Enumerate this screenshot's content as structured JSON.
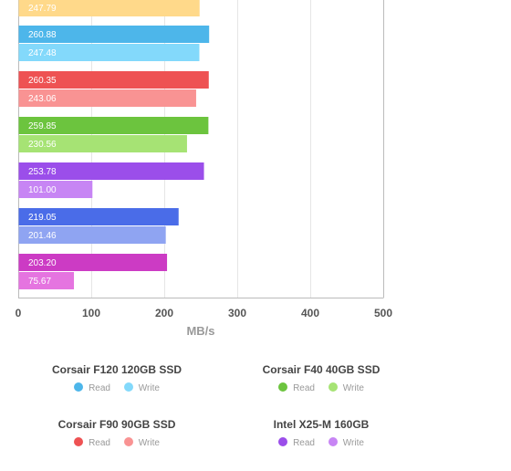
{
  "chart_data": {
    "type": "bar",
    "orientation": "horizontal",
    "xlabel": "MB/s",
    "xlim": [
      0,
      500
    ],
    "xticks": [
      0,
      100,
      200,
      300,
      400,
      500
    ],
    "grid": true,
    "legend_position": "bottom",
    "colors": {
      "read": [
        "#FFD98A",
        "#4DB6EA",
        "#EE5253",
        "#6CC43E",
        "#9B4EEA",
        "#4A6CE8",
        "#CC3BC4"
      ],
      "write": [
        "#FFD98A",
        "#83D9FB",
        "#F99393",
        "#A6E374",
        "#C785F4",
        "#8FA4F2",
        "#E574E0"
      ]
    },
    "bars": [
      {
        "series": "Write",
        "value": 247.79,
        "label": "247.79",
        "visible_partial": true
      },
      {
        "series": "Read",
        "value": 260.88,
        "label": "260.88"
      },
      {
        "series": "Write",
        "value": 247.48,
        "label": "247.48"
      },
      {
        "series": "Read",
        "value": 260.35,
        "label": "260.35"
      },
      {
        "series": "Write",
        "value": 243.06,
        "label": "243.06"
      },
      {
        "series": "Read",
        "value": 259.85,
        "label": "259.85"
      },
      {
        "series": "Write",
        "value": 230.56,
        "label": "230.56"
      },
      {
        "series": "Read",
        "value": 253.78,
        "label": "253.78"
      },
      {
        "series": "Write",
        "value": 101.0,
        "label": "101.00"
      },
      {
        "series": "Read",
        "value": 219.05,
        "label": "219.05"
      },
      {
        "series": "Write",
        "value": 201.46,
        "label": "201.46"
      },
      {
        "series": "Read",
        "value": 203.2,
        "label": "203.20"
      },
      {
        "series": "Write",
        "value": 75.67,
        "label": "75.67"
      }
    ]
  },
  "legend": [
    {
      "title": "Corsair F120 120GB SSD",
      "read_label": "Read",
      "write_label": "Write",
      "read_color": "#4DB6EA",
      "write_color": "#83D9FB"
    },
    {
      "title": "Corsair F40 40GB SSD",
      "read_label": "Read",
      "write_label": "Write",
      "read_color": "#6CC43E",
      "write_color": "#A6E374"
    },
    {
      "title": "Corsair F90 90GB SSD",
      "read_label": "Read",
      "write_label": "Write",
      "read_color": "#EE5253",
      "write_color": "#F99393"
    },
    {
      "title": "Intel X25-M 160GB",
      "read_label": "Read",
      "write_label": "Write",
      "read_color": "#9B4EEA",
      "write_color": "#C785F4"
    }
  ]
}
